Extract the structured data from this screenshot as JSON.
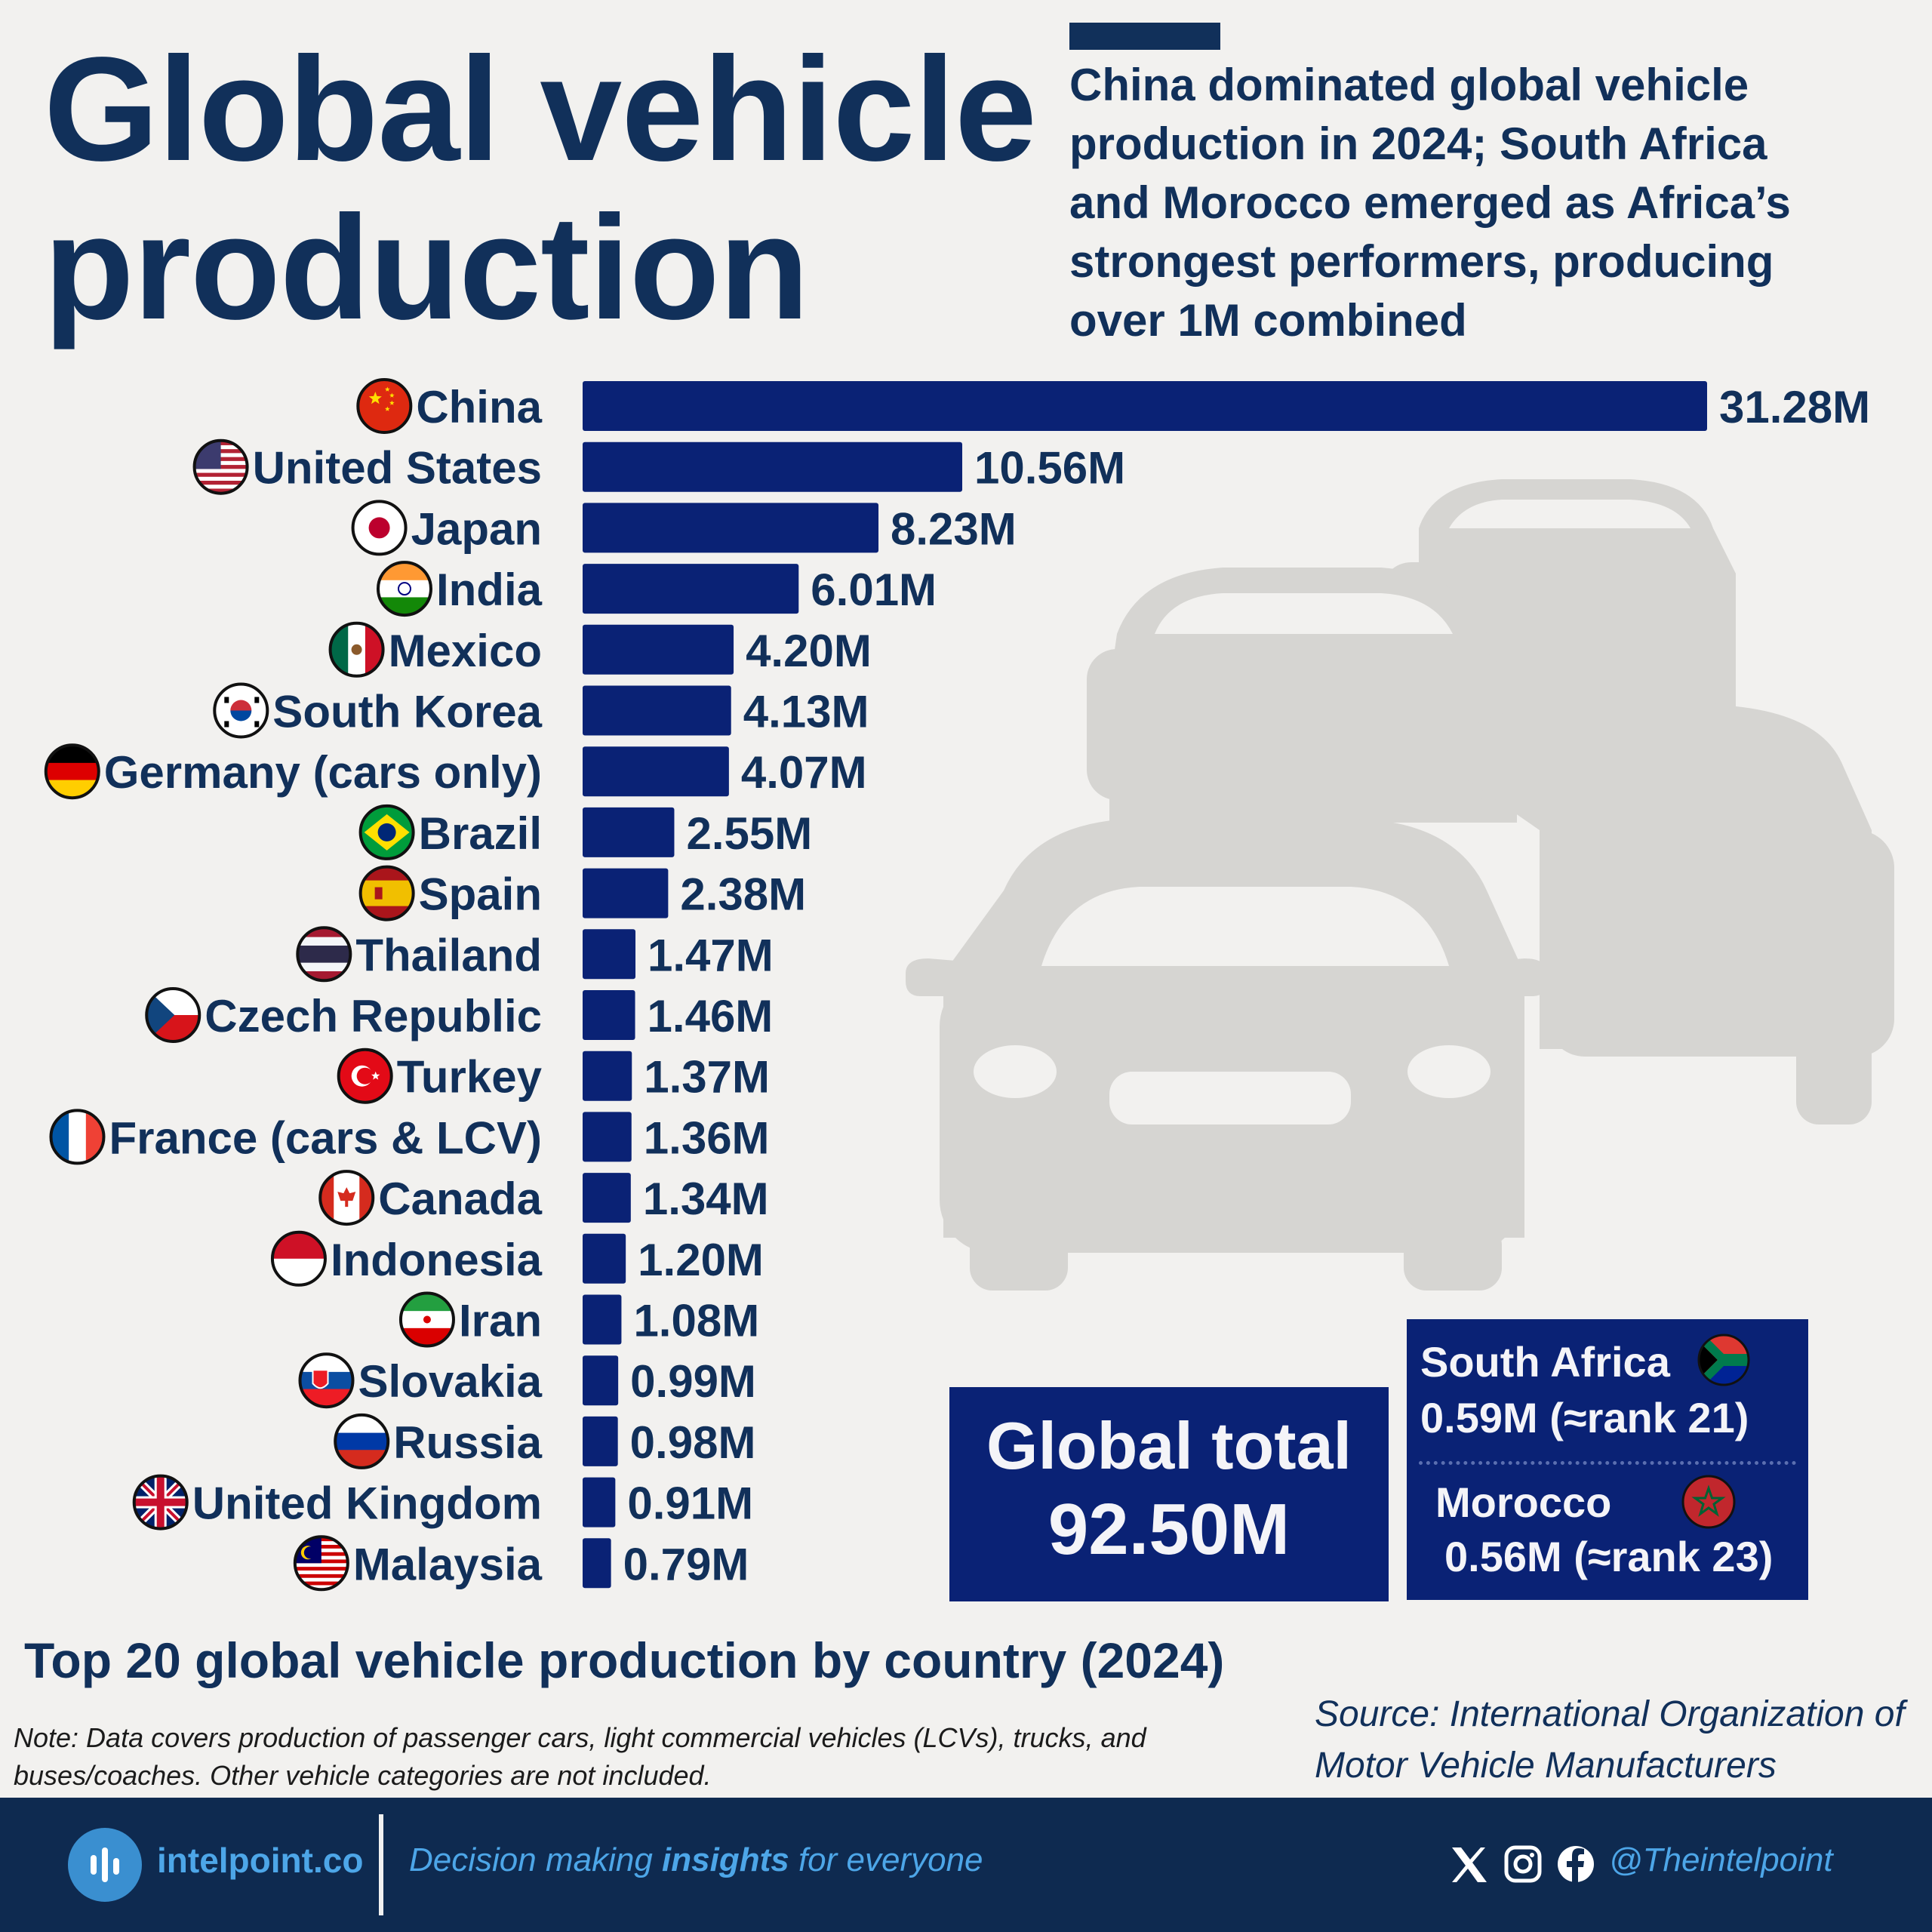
{
  "header": {
    "title_line1": "Global vehicle",
    "title_line2": "production",
    "subtitle_lines": [
      "China dominated global vehicle",
      "production in 2024; South Africa",
      "and Morocco emerged as Africa’s",
      "strongest performers,  producing",
      "over 1M combined"
    ]
  },
  "chart_data": {
    "type": "bar",
    "orientation": "horizontal",
    "title": "Top 20 global vehicle production by country (2024)",
    "xlabel": "",
    "ylabel": "",
    "unit": "M",
    "xlim": [
      0,
      31.28
    ],
    "grid": false,
    "categories": [
      "China",
      "United States",
      "Japan",
      "India",
      "Mexico",
      "South Korea",
      "Germany (cars only)",
      "Brazil",
      "Spain",
      "Thailand",
      "Czech Republic",
      "Turkey",
      "France (cars & LCV)",
      "Canada",
      "Indonesia",
      "Iran",
      "Slovakia",
      "Russia",
      "United Kingdom",
      "Malaysia"
    ],
    "values": [
      31.28,
      10.56,
      8.23,
      6.01,
      4.2,
      4.13,
      4.07,
      2.55,
      2.38,
      1.47,
      1.46,
      1.37,
      1.36,
      1.34,
      1.2,
      1.08,
      0.99,
      0.98,
      0.91,
      0.79
    ],
    "value_labels": [
      "31.28M",
      "10.56M",
      "8.23M",
      "6.01M",
      "4.20M",
      "4.13M",
      "4.07M",
      "2.55M",
      "2.38M",
      "1.47M",
      "1.46M",
      "1.37M",
      "1.36M",
      "1.34M",
      "1.20M",
      "1.08M",
      "0.99M",
      "0.98M",
      "0.91M",
      "0.79M"
    ],
    "flag_icons": [
      "china-flag-icon",
      "united-states-flag-icon",
      "japan-flag-icon",
      "india-flag-icon",
      "mexico-flag-icon",
      "south-korea-flag-icon",
      "germany-flag-icon",
      "brazil-flag-icon",
      "spain-flag-icon",
      "thailand-flag-icon",
      "czech-republic-flag-icon",
      "turkey-flag-icon",
      "france-flag-icon",
      "canada-flag-icon",
      "indonesia-flag-icon",
      "iran-flag-icon",
      "slovakia-flag-icon",
      "russia-flag-icon",
      "united-kingdom-flag-icon",
      "malaysia-flag-icon"
    ],
    "bar_color": "#0a2275"
  },
  "global_total": {
    "label": "Global total",
    "value": "92.50M"
  },
  "africa": {
    "south_africa": {
      "name": "South Africa",
      "detail": "0.59M (≈rank 21)",
      "icon": "south-africa-flag-icon"
    },
    "morocco": {
      "name": "Morocco",
      "detail": "0.56M (≈rank 23)",
      "icon": "morocco-flag-icon"
    }
  },
  "note": "Note: Data covers production of passenger cars, light commercial vehicles (LCVs), trucks, and buses/coaches. Other vehicle categories are not included.",
  "source": "Source: International Organization of Motor Vehicle Manufacturers",
  "footer": {
    "brand": "intelpoint.co",
    "tagline_pre": "Decision making ",
    "tagline_bold": "insights",
    "tagline_post": " for everyone",
    "handle": "@Theintelpoint",
    "social_icons": [
      "x-icon",
      "instagram-icon",
      "facebook-icon"
    ]
  },
  "colors": {
    "navy_text": "#11305a",
    "bar": "#0a2275",
    "background": "#f2f1ef",
    "footer_bg": "#0e2a50",
    "footer_accent": "#4da6e8",
    "car_illustration": "#d6d5d2"
  }
}
